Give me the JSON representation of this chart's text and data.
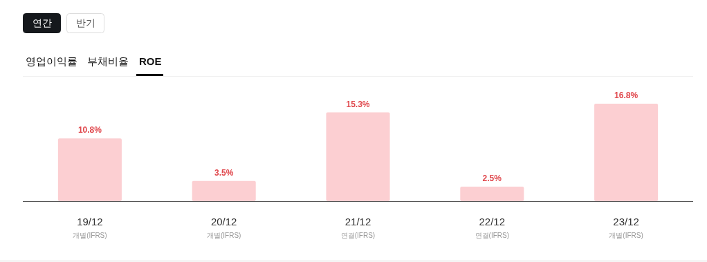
{
  "chart_data": {
    "type": "bar",
    "relative": false,
    "annotations": [
      "연간",
      "반기",
      "영업이익률",
      "부채비율",
      "ROE"
    ],
    "categories": [
      "19/12\n개별(IFRS)",
      "20/12\n개별(IFRS)",
      "21/12\n연결(IFRS)",
      "22/12\n연결(IFRS)",
      "23/12\n개별(IFRS)"
    ],
    "values": [
      10.8,
      3.5,
      15.3,
      2.5,
      16.8
    ],
    "color": "#fccfd2",
    "value_labels": [
      "10.8%",
      "3.5%",
      "15.3%",
      "2.5%",
      "16.8%"
    ]
  }
}
